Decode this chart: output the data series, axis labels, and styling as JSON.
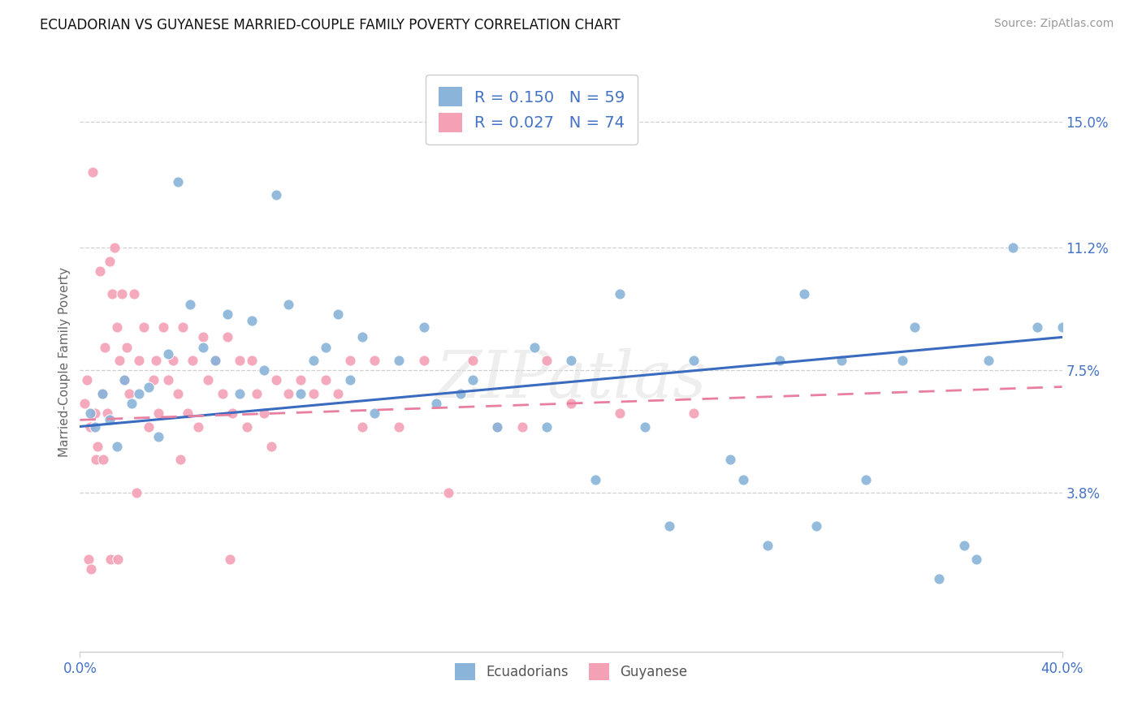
{
  "title": "ECUADORIAN VS GUYANESE MARRIED-COUPLE FAMILY POVERTY CORRELATION CHART",
  "source": "Source: ZipAtlas.com",
  "ylabel": "Married-Couple Family Poverty",
  "xmin": 0.0,
  "xmax": 40.0,
  "ymin": -1.0,
  "ymax": 16.5,
  "watermark": "ZIPatlas",
  "series1_color": "#8ab4d9",
  "series2_color": "#f4a0b5",
  "series1_name": "Ecuadorians",
  "series2_name": "Guyanese",
  "regression_blue_color": "#3a6bbf",
  "regression_pink_color": "#e87fa0",
  "ytick_values": [
    3.8,
    7.5,
    11.2,
    15.0
  ],
  "ytick_labels": [
    "3.8%",
    "7.5%",
    "11.2%",
    "15.0%"
  ],
  "legend_R1": "0.150",
  "legend_N1": "59",
  "legend_R2": "0.027",
  "legend_N2": "74",
  "ecua_x": [
    0.4,
    0.6,
    0.9,
    1.2,
    1.5,
    1.8,
    2.1,
    2.4,
    2.8,
    3.2,
    3.6,
    4.0,
    4.5,
    5.0,
    5.5,
    6.0,
    6.5,
    7.0,
    7.5,
    8.0,
    8.5,
    9.0,
    9.5,
    10.0,
    11.0,
    12.0,
    13.0,
    14.0,
    15.5,
    17.0,
    18.5,
    20.0,
    22.0,
    24.0,
    25.0,
    26.5,
    28.0,
    28.5,
    30.0,
    32.0,
    33.5,
    35.0,
    36.5,
    37.0,
    38.0,
    39.0,
    40.0,
    27.0,
    29.5,
    31.0,
    34.0,
    36.0,
    19.0,
    21.0,
    23.0,
    16.0,
    10.5,
    11.5,
    14.5
  ],
  "ecua_y": [
    6.2,
    5.8,
    6.8,
    6.0,
    5.2,
    7.2,
    6.5,
    6.8,
    7.0,
    5.5,
    8.0,
    13.2,
    9.5,
    8.2,
    7.8,
    9.2,
    6.8,
    9.0,
    7.5,
    12.8,
    9.5,
    6.8,
    7.8,
    8.2,
    7.2,
    6.2,
    7.8,
    8.8,
    6.8,
    5.8,
    8.2,
    7.8,
    9.8,
    2.8,
    7.8,
    4.8,
    2.2,
    7.8,
    2.8,
    4.2,
    7.8,
    1.2,
    1.8,
    7.8,
    11.2,
    8.8,
    8.8,
    4.2,
    9.8,
    7.8,
    8.8,
    2.2,
    5.8,
    4.2,
    5.8,
    7.2,
    9.2,
    8.5,
    6.5
  ],
  "guy_x": [
    0.2,
    0.3,
    0.4,
    0.5,
    0.6,
    0.7,
    0.8,
    0.9,
    1.0,
    1.1,
    1.2,
    1.3,
    1.4,
    1.5,
    1.6,
    1.7,
    1.8,
    1.9,
    2.0,
    2.2,
    2.4,
    2.6,
    2.8,
    3.0,
    3.2,
    3.4,
    3.6,
    3.8,
    4.0,
    4.2,
    4.4,
    4.6,
    4.8,
    5.0,
    5.2,
    5.5,
    5.8,
    6.0,
    6.2,
    6.5,
    6.8,
    7.0,
    7.2,
    7.5,
    7.8,
    8.0,
    8.5,
    9.0,
    9.5,
    10.0,
    10.5,
    11.0,
    11.5,
    12.0,
    13.0,
    14.0,
    15.0,
    16.0,
    17.0,
    18.0,
    19.0,
    20.0,
    22.0,
    25.0,
    0.35,
    0.65,
    0.95,
    1.25,
    1.55,
    2.3,
    3.1,
    4.1,
    6.1,
    0.45
  ],
  "guy_y": [
    6.5,
    7.2,
    5.8,
    13.5,
    6.2,
    5.2,
    10.5,
    6.8,
    8.2,
    6.2,
    10.8,
    9.8,
    11.2,
    8.8,
    7.8,
    9.8,
    7.2,
    8.2,
    6.8,
    9.8,
    7.8,
    8.8,
    5.8,
    7.2,
    6.2,
    8.8,
    7.2,
    7.8,
    6.8,
    8.8,
    6.2,
    7.8,
    5.8,
    8.5,
    7.2,
    7.8,
    6.8,
    8.5,
    6.2,
    7.8,
    5.8,
    7.8,
    6.8,
    6.2,
    5.2,
    7.2,
    6.8,
    7.2,
    6.8,
    7.2,
    6.8,
    7.8,
    5.8,
    7.8,
    5.8,
    7.8,
    3.8,
    7.8,
    5.8,
    5.8,
    7.8,
    6.5,
    6.2,
    6.2,
    1.8,
    4.8,
    4.8,
    1.8,
    1.8,
    3.8,
    7.8,
    4.8,
    1.8,
    1.5
  ]
}
